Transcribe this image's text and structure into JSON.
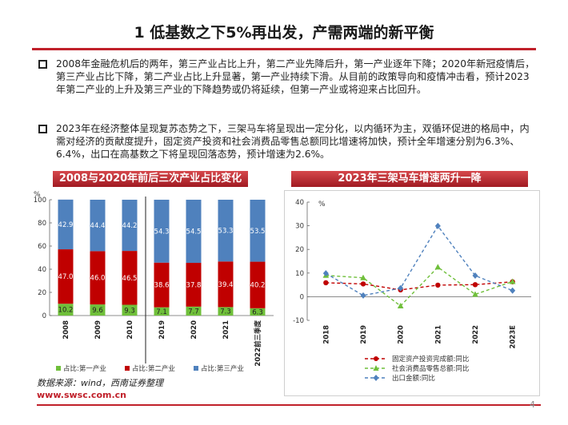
{
  "title": "1 低基数之下5%再出发，产需两端的新平衡",
  "bullets": [
    "2008年金融危机后的两年，第三产业占比上升，第二产业先降后升，第一产业逐年下降；2020年新冠疫情后，第三产业占比下降，第二产业占比上升显著，第一产业持续下滑。从目前的政策导向和疫情冲击看，预计2023年第二产业的上升及第三产业的下降趋势或仍将延续，但第一产业或将迎来占比回升。",
    "2023年在经济整体呈现复苏态势之下，三架马车将呈现出一定分化，以内循环为主，双循环促进的格局中，内需对经济的贡献度提升，固定资产投资和社会消费品零售总额同比增速将加快，预计全年增速分别为6.3%、6.4%，出口在高基数之下将呈现回落态势，预计增速为2.6%。"
  ],
  "footer": {
    "source": "数据来源：wind，西南证券整理",
    "site": "www.swsc.com.cn",
    "page": "4"
  },
  "colors": {
    "primary": "#c00000",
    "secondary": "#4f81bd",
    "tertiary": "#6fbf3a",
    "accent": "#c0202a"
  },
  "chart_data": [
    {
      "type": "bar",
      "stacked": true,
      "title": "2008与2020年前后三次产业占比变化",
      "ylabel": "%",
      "ylim": [
        0,
        100
      ],
      "yticks": [
        0,
        20,
        40,
        60,
        80,
        100
      ],
      "categories": [
        "2008",
        "2009",
        "2010",
        "2019",
        "2020",
        "2021",
        "2022前三季度"
      ],
      "separator_after": "2010",
      "legend_position": "bottom",
      "series": [
        {
          "name": "占比:第一产业",
          "color": "#6fbf3a",
          "values": [
            10.2,
            9.6,
            9.3,
            7.1,
            7.7,
            7.3,
            6.3
          ]
        },
        {
          "name": "占比:第二产业",
          "color": "#c00000",
          "values": [
            47.0,
            46.0,
            46.5,
            38.6,
            37.8,
            39.4,
            40.2
          ]
        },
        {
          "name": "占比:第三产业",
          "color": "#4f81bd",
          "values": [
            42.9,
            44.4,
            44.2,
            54.3,
            54.5,
            53.3,
            53.5
          ]
        }
      ]
    },
    {
      "type": "line",
      "title": "2023年三架马车增速两升一降",
      "ylabel": "%",
      "ylim": [
        -10,
        40
      ],
      "yticks": [
        -10,
        0,
        10,
        20,
        30,
        40
      ],
      "categories": [
        "2018",
        "2019",
        "2020",
        "2021",
        "2022",
        "2023E"
      ],
      "legend_position": "bottom",
      "series": [
        {
          "name": "固定资产投资完成额:同比",
          "color": "#c00000",
          "values": [
            5.9,
            5.4,
            2.9,
            4.9,
            5.1,
            6.3
          ]
        },
        {
          "name": "社会消费品零售总额:同比",
          "color": "#6fbf3a",
          "values": [
            9.0,
            8.0,
            -3.9,
            12.5,
            1.0,
            6.4
          ]
        },
        {
          "name": "出口金额:同比",
          "color": "#4f81bd",
          "values": [
            9.9,
            0.5,
            3.6,
            29.9,
            8.9,
            2.6
          ]
        }
      ]
    }
  ]
}
